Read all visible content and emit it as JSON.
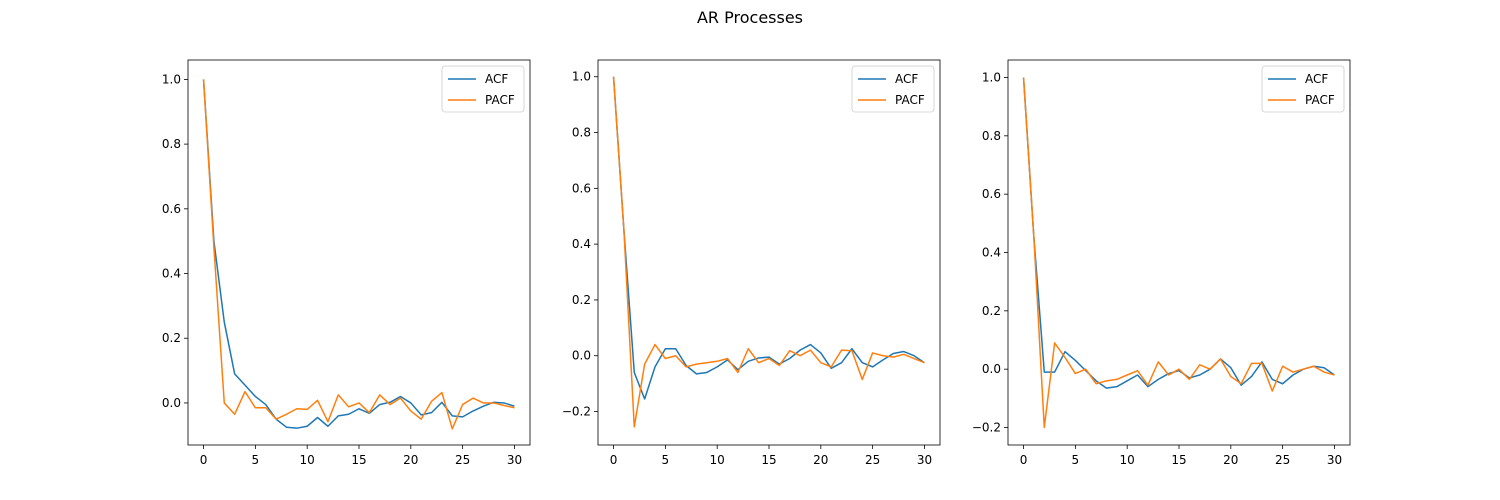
{
  "figure": {
    "title": "AR Processes"
  },
  "chart_data": [
    {
      "type": "line",
      "x": [
        0,
        1,
        2,
        3,
        4,
        5,
        6,
        7,
        8,
        9,
        10,
        11,
        12,
        13,
        14,
        15,
        16,
        17,
        18,
        19,
        20,
        21,
        22,
        23,
        24,
        25,
        26,
        27,
        28,
        29,
        30
      ],
      "xlim": [
        -1.5,
        31.5
      ],
      "ylim": [
        -0.13,
        1.06
      ],
      "xticks": [
        0,
        5,
        10,
        15,
        20,
        25,
        30
      ],
      "yticks": [
        0.0,
        0.2,
        0.4,
        0.6,
        0.8,
        1.0
      ],
      "ytick_labels": [
        "0.0",
        "0.2",
        "0.4",
        "0.6",
        "0.8",
        "1.0"
      ],
      "legend_position": "top-right",
      "series": [
        {
          "name": "ACF",
          "color": "#1f77b4",
          "values": [
            1.0,
            0.5,
            0.25,
            0.09,
            0.055,
            0.02,
            -0.005,
            -0.05,
            -0.075,
            -0.078,
            -0.072,
            -0.045,
            -0.072,
            -0.04,
            -0.035,
            -0.018,
            -0.032,
            -0.005,
            0.002,
            0.02,
            0.0,
            -0.037,
            -0.03,
            0.002,
            -0.04,
            -0.043,
            -0.025,
            -0.01,
            0.002,
            0.0,
            -0.01
          ]
        },
        {
          "name": "PACF",
          "color": "#ff7f0e",
          "values": [
            1.0,
            0.48,
            0.0,
            -0.035,
            0.035,
            -0.015,
            -0.015,
            -0.05,
            -0.035,
            -0.018,
            -0.02,
            0.008,
            -0.058,
            0.025,
            -0.012,
            0.0,
            -0.03,
            0.025,
            -0.005,
            0.015,
            -0.025,
            -0.05,
            0.005,
            0.032,
            -0.08,
            -0.005,
            0.015,
            0.0,
            0.0,
            -0.008,
            -0.015
          ]
        }
      ]
    },
    {
      "type": "line",
      "x": [
        0,
        1,
        2,
        3,
        4,
        5,
        6,
        7,
        8,
        9,
        10,
        11,
        12,
        13,
        14,
        15,
        16,
        17,
        18,
        19,
        20,
        21,
        22,
        23,
        24,
        25,
        26,
        27,
        28,
        29,
        30
      ],
      "xlim": [
        -1.5,
        31.5
      ],
      "ylim": [
        -0.32,
        1.06
      ],
      "xticks": [
        0,
        5,
        10,
        15,
        20,
        25,
        30
      ],
      "yticks": [
        -0.2,
        0.0,
        0.2,
        0.4,
        0.6,
        0.8,
        1.0
      ],
      "ytick_labels": [
        "−0.2",
        "0.0",
        "0.2",
        "0.4",
        "0.6",
        "0.8",
        "1.0"
      ],
      "legend_position": "top-right",
      "series": [
        {
          "name": "ACF",
          "color": "#1f77b4",
          "values": [
            1.0,
            0.45,
            -0.06,
            -0.155,
            -0.04,
            0.025,
            0.025,
            -0.035,
            -0.065,
            -0.06,
            -0.04,
            -0.015,
            -0.05,
            -0.02,
            -0.008,
            -0.005,
            -0.03,
            -0.01,
            0.02,
            0.04,
            0.01,
            -0.045,
            -0.025,
            0.025,
            -0.025,
            -0.04,
            -0.015,
            0.008,
            0.015,
            0.0,
            -0.025
          ]
        },
        {
          "name": "PACF",
          "color": "#ff7f0e",
          "values": [
            1.0,
            0.45,
            -0.255,
            -0.03,
            0.04,
            -0.01,
            0.0,
            -0.04,
            -0.03,
            -0.025,
            -0.02,
            -0.01,
            -0.06,
            0.025,
            -0.025,
            -0.01,
            -0.035,
            0.018,
            0.0,
            0.02,
            -0.025,
            -0.04,
            0.02,
            0.018,
            -0.085,
            0.01,
            0.0,
            -0.005,
            0.005,
            -0.01,
            -0.025
          ]
        }
      ]
    },
    {
      "type": "line",
      "x": [
        0,
        1,
        2,
        3,
        4,
        5,
        6,
        7,
        8,
        9,
        10,
        11,
        12,
        13,
        14,
        15,
        16,
        17,
        18,
        19,
        20,
        21,
        22,
        23,
        24,
        25,
        26,
        27,
        28,
        29,
        30
      ],
      "xlim": [
        -1.5,
        31.5
      ],
      "ylim": [
        -0.26,
        1.06
      ],
      "xticks": [
        0,
        5,
        10,
        15,
        20,
        25,
        30
      ],
      "yticks": [
        -0.2,
        0.0,
        0.2,
        0.4,
        0.6,
        0.8,
        1.0
      ],
      "ytick_labels": [
        "−0.2",
        "0.0",
        "0.2",
        "0.4",
        "0.6",
        "0.8",
        "1.0"
      ],
      "legend_position": "top-right",
      "series": [
        {
          "name": "ACF",
          "color": "#1f77b4",
          "values": [
            1.0,
            0.45,
            -0.01,
            -0.01,
            0.06,
            0.03,
            -0.005,
            -0.04,
            -0.065,
            -0.06,
            -0.04,
            -0.02,
            -0.06,
            -0.035,
            -0.015,
            -0.005,
            -0.03,
            -0.02,
            0.0,
            0.035,
            0.005,
            -0.055,
            -0.025,
            0.025,
            -0.035,
            -0.05,
            -0.02,
            0.0,
            0.01,
            0.005,
            -0.02
          ]
        },
        {
          "name": "PACF",
          "color": "#ff7f0e",
          "values": [
            1.0,
            0.45,
            -0.2,
            0.09,
            0.04,
            -0.015,
            0.0,
            -0.05,
            -0.04,
            -0.035,
            -0.02,
            -0.005,
            -0.055,
            0.025,
            -0.02,
            0.0,
            -0.035,
            0.015,
            0.0,
            0.035,
            -0.025,
            -0.05,
            0.02,
            0.02,
            -0.075,
            0.01,
            -0.01,
            0.0,
            0.01,
            -0.01,
            -0.02
          ]
        }
      ]
    }
  ]
}
